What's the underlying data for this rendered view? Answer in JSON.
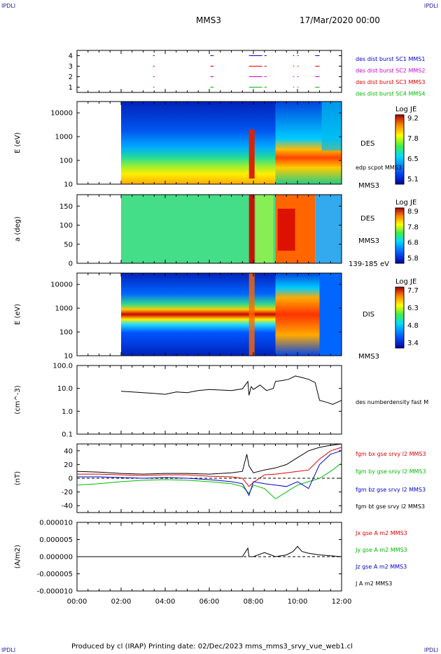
{
  "corner_label": "IPDLI",
  "header": {
    "spacecraft": "MMS3",
    "datetime": "17/Mar/2020 00:00"
  },
  "footer": {
    "text": "Produced by cl (IRAP)   Printing date: 02/Dec/2023   mms_mms3_srvy_vue_web1.cl"
  },
  "colors": {
    "c1": "#0000cc",
    "c2": "#cc00cc",
    "c3": "#dd0000",
    "c4": "#00bb00",
    "black": "#000000"
  },
  "chart_data": [
    {
      "type": "scatter",
      "panel": "burst",
      "yticks": [
        "1",
        "2",
        "3",
        "4"
      ],
      "ylim": [
        0.5,
        4.5
      ],
      "legend": [
        {
          "label": "des dist burst SC1 MMS1",
          "color": "#0000cc"
        },
        {
          "label": "des dist burst SC2 MMS2",
          "color": "#cc00cc"
        },
        {
          "label": "des dist burst SC3 MMS3",
          "color": "#dd0000"
        },
        {
          "label": "des dist burst SC4 MMS4",
          "color": "#00bb00"
        }
      ],
      "segments_hours": [
        [
          3.45,
          3.52
        ],
        [
          6.05,
          6.2
        ],
        [
          7.8,
          8.4
        ],
        [
          8.5,
          8.6
        ],
        [
          9.8,
          9.85
        ],
        [
          10.0,
          10.05
        ],
        [
          10.8,
          11.0
        ]
      ]
    },
    {
      "type": "heatmap",
      "panel": "des-energy",
      "ylabel": "E (eV)",
      "yticks": [
        "10",
        "100",
        "1000",
        "10000"
      ],
      "ylim": [
        10,
        30000
      ],
      "log": true,
      "labels": [
        "DES",
        "edp scpot MMS3",
        "MMS3"
      ],
      "colorbar": {
        "title": "Log JE",
        "ticks": [
          "9.2",
          "7.8",
          "6.5",
          "5.1"
        ],
        "min": 5.1,
        "max": 9.2
      }
    },
    {
      "type": "heatmap",
      "panel": "des-pitch",
      "ylabel": "a (deg)",
      "yticks": [
        "0",
        "50",
        "100",
        "150"
      ],
      "ylim": [
        0,
        180
      ],
      "labels": [
        "DES",
        "MMS3",
        "139-185 eV"
      ],
      "colorbar": {
        "title": "Log JE",
        "ticks": [
          "8.9",
          "7.8",
          "6.8",
          "5.8"
        ],
        "min": 5.8,
        "max": 8.9
      }
    },
    {
      "type": "heatmap",
      "panel": "dis-energy",
      "ylabel": "E (eV)",
      "yticks": [
        "10",
        "100",
        "1000",
        "10000"
      ],
      "ylim": [
        10,
        30000
      ],
      "log": true,
      "labels": [
        "DIS",
        "MMS3"
      ],
      "colorbar": {
        "title": "Log JE",
        "ticks": [
          "7.7",
          "6.3",
          "4.8",
          "3.4"
        ],
        "min": 3.4,
        "max": 7.7
      }
    },
    {
      "type": "line",
      "panel": "density",
      "ylabel": "(cm^-3)",
      "yticks": [
        "0.1",
        "1.0",
        "10.0",
        "100.0"
      ],
      "ylim": [
        0.1,
        100
      ],
      "log": true,
      "series": [
        {
          "name": "des numberdensity fast M",
          "color": "#000000",
          "x": [
            2.0,
            2.5,
            3.0,
            3.5,
            4.0,
            4.5,
            5.0,
            5.5,
            6.0,
            6.5,
            7.0,
            7.5,
            7.75,
            7.8,
            7.9,
            8.0,
            8.3,
            8.6,
            8.9,
            9.0,
            9.3,
            9.6,
            9.9,
            10.2,
            10.5,
            10.8,
            11.0,
            11.3,
            11.6,
            12.0
          ],
          "y": [
            7.5,
            7,
            6.5,
            6,
            5.5,
            7,
            6.5,
            8,
            9,
            8.5,
            8,
            9.5,
            20,
            5,
            12,
            9,
            14,
            8,
            10,
            20,
            22,
            25,
            35,
            30,
            25,
            18,
            3,
            2.5,
            2,
            3
          ]
        }
      ]
    },
    {
      "type": "line",
      "panel": "magnetic-field",
      "ylabel": "(nT)",
      "yticks": [
        "-40",
        "-20",
        "0",
        "20",
        "40"
      ],
      "ylim": [
        -50,
        50
      ],
      "series": [
        {
          "name": "fgm bx gse srvy l2 MMS3",
          "color": "#dd0000",
          "x": [
            0,
            1,
            2,
            3,
            4,
            5,
            6,
            7,
            7.5,
            7.8,
            8,
            8.5,
            9,
            9.5,
            10,
            10.5,
            11,
            11.5,
            12
          ],
          "y": [
            6,
            6,
            5,
            4,
            5,
            5,
            3,
            2,
            0,
            -12,
            -6,
            5,
            6,
            8,
            10,
            12,
            28,
            40,
            45
          ]
        },
        {
          "name": "fgm by gse srvy l2 MMS3",
          "color": "#00bb00",
          "x": [
            0,
            1,
            2,
            3,
            4,
            5,
            6,
            7,
            7.5,
            7.8,
            8,
            8.5,
            9,
            9.5,
            10,
            10.5,
            11,
            11.5,
            12
          ],
          "y": [
            -10,
            -8,
            -5,
            -3,
            -2,
            -3,
            -5,
            -8,
            -12,
            -22,
            -10,
            -15,
            -30,
            -20,
            -10,
            -5,
            0,
            10,
            22
          ]
        },
        {
          "name": "fgm bz gse srvy l2 MMS3",
          "color": "#0000cc",
          "x": [
            0,
            1,
            2,
            3,
            4,
            5,
            6,
            7,
            7.5,
            7.8,
            8,
            8.5,
            9,
            9.5,
            10,
            10.5,
            11,
            11.5,
            12
          ],
          "y": [
            2,
            2,
            1,
            0,
            1,
            0,
            -2,
            -5,
            -8,
            -25,
            -5,
            -8,
            -10,
            -12,
            -5,
            -15,
            20,
            35,
            40
          ]
        },
        {
          "name": "fgm bt gse srvy l2 MMS3",
          "color": "#000000",
          "x": [
            0,
            1,
            2,
            3,
            4,
            5,
            6,
            7,
            7.5,
            7.7,
            7.8,
            8,
            8.5,
            9,
            9.5,
            10,
            10.5,
            11,
            11.5,
            12
          ],
          "y": [
            10,
            9,
            7,
            6,
            7,
            7,
            6,
            8,
            10,
            35,
            18,
            8,
            12,
            15,
            20,
            30,
            40,
            45,
            48,
            50
          ]
        }
      ]
    },
    {
      "type": "line",
      "panel": "current-density",
      "ylabel": "(A/m2)",
      "yticks": [
        "-0.000010",
        "-0.000005",
        "0.000000",
        "0.000005",
        "0.000010"
      ],
      "ylim": [
        -1e-05,
        1e-05
      ],
      "series": [
        {
          "name": "Jx gse A m2 MMS3",
          "color": "#dd0000"
        },
        {
          "name": "Jy gse A m2 MMS3",
          "color": "#00bb00"
        },
        {
          "name": "Jz gse A m2 MMS3",
          "color": "#0000cc"
        },
        {
          "name": "J A m2 MMS3",
          "color": "#000000",
          "x": [
            0,
            2,
            4,
            6,
            7.5,
            7.75,
            7.8,
            8,
            8.5,
            9,
            9.5,
            9.8,
            10,
            10.2,
            10.5,
            11,
            12
          ],
          "y": [
            0,
            0,
            0,
            0,
            0,
            2.5e-06,
            0,
            0,
            1.2e-06,
            0,
            5e-07,
            1.5e-06,
            3e-06,
            1.5e-06,
            1e-06,
            5e-07,
            0
          ]
        }
      ]
    }
  ],
  "time_axis": {
    "ticks": [
      "00:00",
      "02:00",
      "04:00",
      "06:00",
      "08:00",
      "10:00",
      "12:00"
    ],
    "range_hours": [
      0,
      12
    ]
  }
}
